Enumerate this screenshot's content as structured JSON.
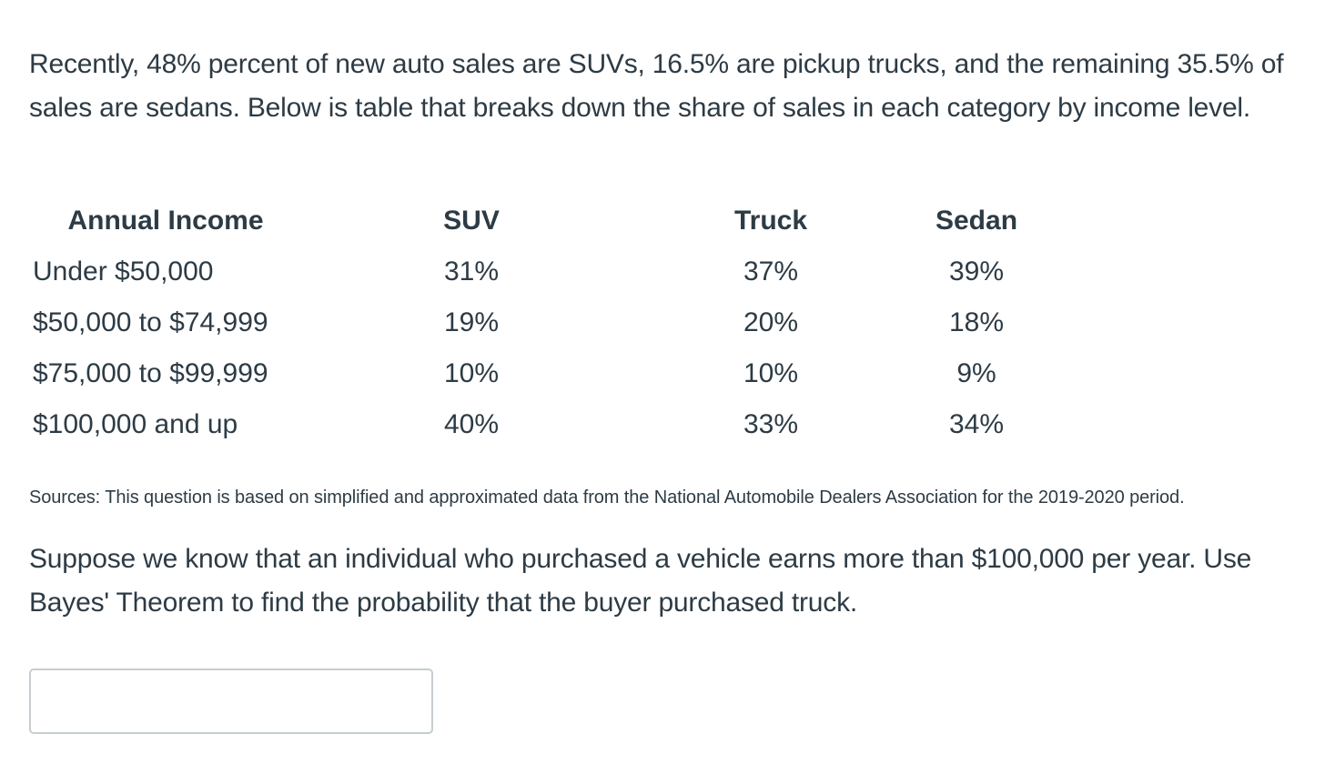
{
  "intro": "Recently, 48% percent of new auto sales are SUVs, 16.5% are pickup trucks, and the remaining 35.5% of sales are sedans. Below is table that breaks down the share of sales in each category by income level.",
  "table": {
    "headers": [
      "Annual Income",
      "SUV",
      "Truck",
      "Sedan"
    ],
    "rows": [
      {
        "income": "Under $50,000",
        "suv": "31%",
        "truck": "37%",
        "sedan": "39%"
      },
      {
        "income": "$50,000 to $74,999",
        "suv": "19%",
        "truck": "20%",
        "sedan": "18%"
      },
      {
        "income": "$75,000 to $99,999",
        "suv": "10%",
        "truck": "10%",
        "sedan": "9%"
      },
      {
        "income": "$100,000 and up",
        "suv": "40%",
        "truck": "33%",
        "sedan": "34%"
      }
    ]
  },
  "sources": "Sources: This question is based on simplified and approximated data from the National Automobile Dealers Association for the 2019-2020 period.",
  "question": "Suppose we know that an individual who purchased a vehicle earns more than $100,000 per year. Use Bayes' Theorem to find the probability that the buyer purchased truck.",
  "answer": {
    "value": "",
    "placeholder": ""
  }
}
